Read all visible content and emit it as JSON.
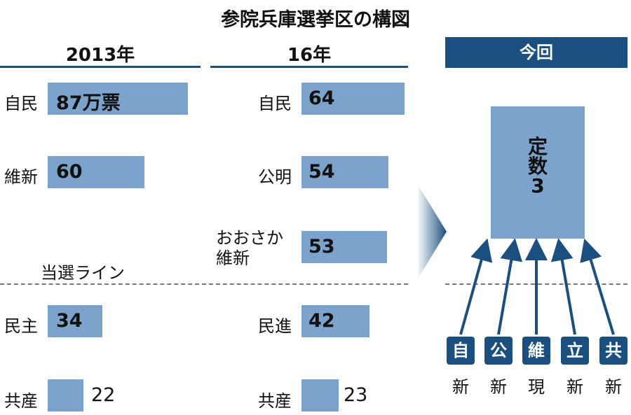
{
  "title": "参院兵庫選挙区の構図",
  "chart_data": [
    {
      "type": "bar",
      "orientation": "horizontal",
      "title": "2013年",
      "unit_label": "万票",
      "categories": [
        "自民",
        "維新",
        "民主",
        "共産"
      ],
      "values": [
        87,
        60,
        34,
        22
      ],
      "value_labels": [
        "87万票",
        "60",
        "34",
        "22"
      ],
      "winning_line_label": "当選ライン"
    },
    {
      "type": "bar",
      "orientation": "horizontal",
      "title": "16年",
      "categories": [
        "自民",
        "公明",
        "おおさか維新",
        "民進",
        "共産"
      ],
      "category_lines": [
        [
          "自民"
        ],
        [
          "公明"
        ],
        [
          "おおさか",
          "維新"
        ],
        [
          "民進"
        ],
        [
          "共産"
        ]
      ],
      "values": [
        64,
        54,
        53,
        42,
        23
      ],
      "value_labels": [
        "64",
        "54",
        "53",
        "42",
        "23"
      ]
    }
  ],
  "current": {
    "header": "今回",
    "seats_lines": [
      "定",
      "数",
      "3"
    ],
    "candidates": [
      {
        "party": "自",
        "status": "新"
      },
      {
        "party": "公",
        "status": "新"
      },
      {
        "party": "維",
        "status": "現"
      },
      {
        "party": "立",
        "status": "新"
      },
      {
        "party": "共",
        "status": "新"
      }
    ]
  },
  "colors": {
    "bar": "#7ba3cb",
    "accent": "#1b4f7f",
    "arrow": "#1b4f7f"
  }
}
